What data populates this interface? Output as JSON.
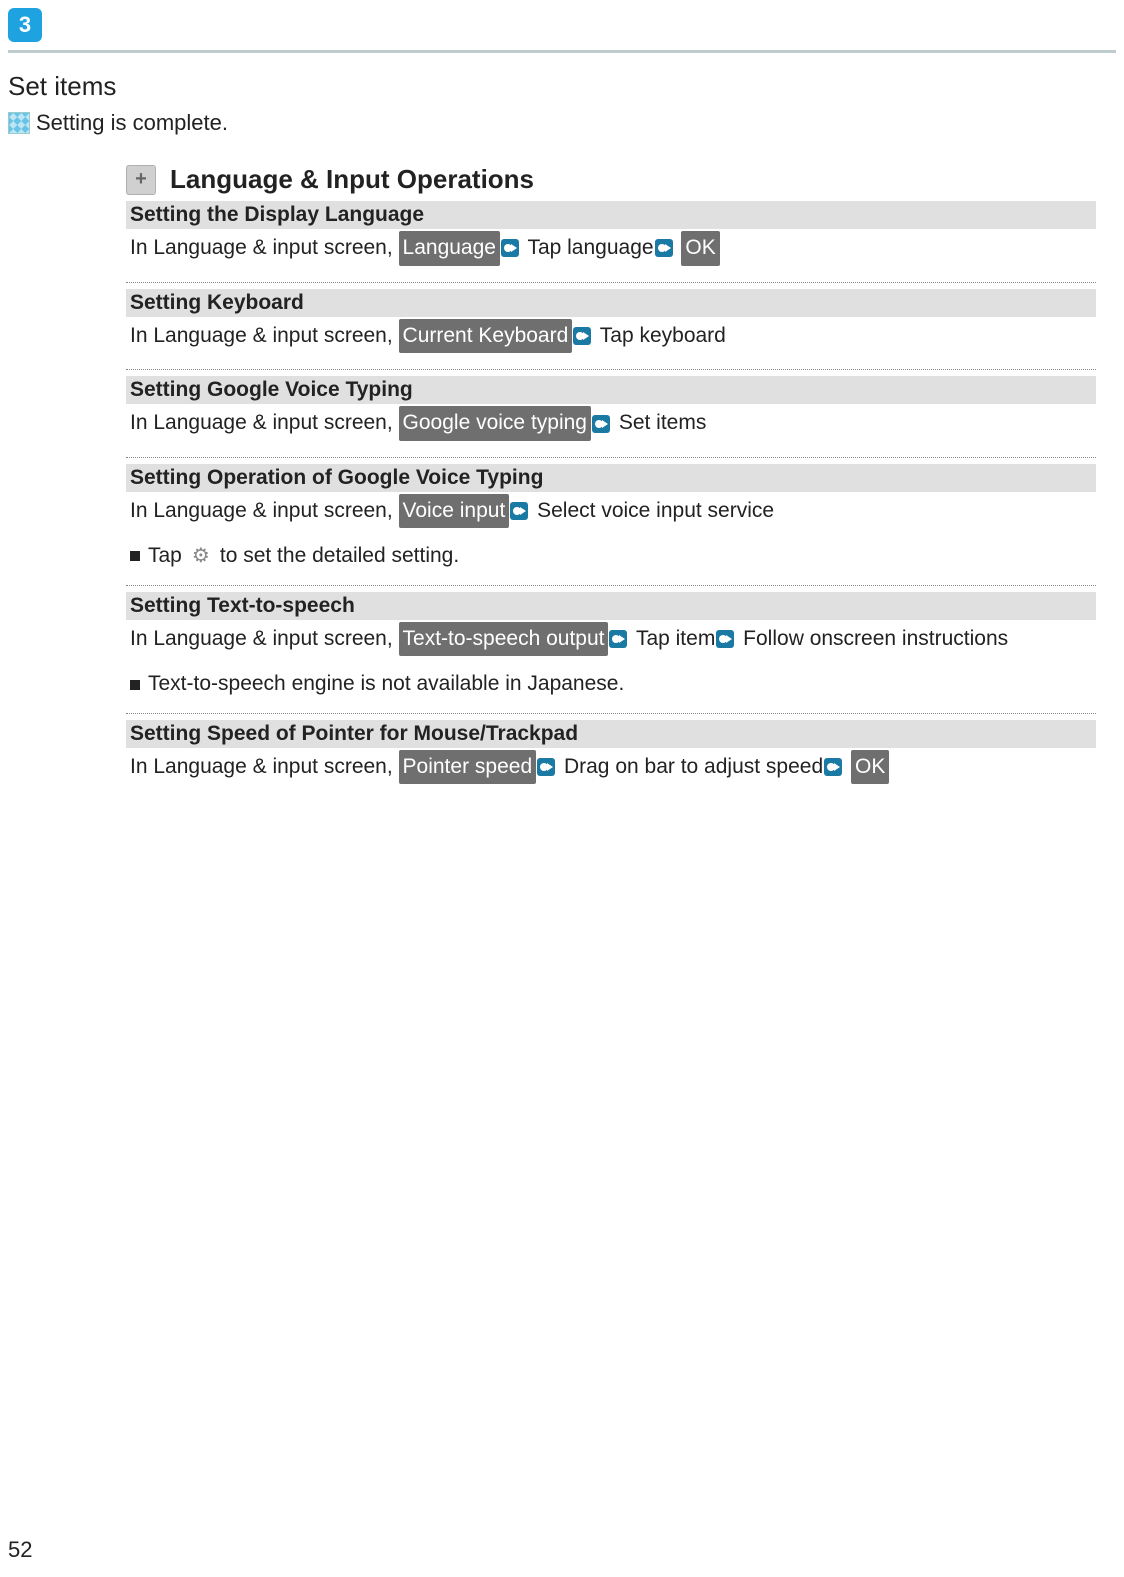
{
  "stepNumber": "3",
  "setItems": "Set items",
  "completeText": "Setting is complete.",
  "sectionTitle": "Language & Input Operations",
  "blocks": [
    {
      "heading": "Setting the Display Language",
      "prefix": "In Language & input screen, ",
      "steps": [
        {
          "chip": "Language",
          "after": "Tap language"
        },
        {
          "chip": null,
          "after": null
        },
        {
          "chip": "OK",
          "after": null,
          "noArrow": true
        }
      ],
      "rendered": true
    }
  ],
  "b1": {
    "heading": "Setting the Display Language",
    "prefix": "In Language & input screen, ",
    "chip1": "Language",
    "text1": "Tap language",
    "chip2": "OK"
  },
  "b2": {
    "heading": "Setting Keyboard",
    "prefix": "In Language & input screen, ",
    "chip1": "Current Keyboard",
    "text1": "Tap keyboard"
  },
  "b3": {
    "heading": "Setting Google Voice Typing",
    "prefix": "In Language & input screen, ",
    "chip1": "Google voice typing",
    "text1": "Set items"
  },
  "b4": {
    "heading": "Setting Operation of Google Voice Typing",
    "prefix": "In Language & input screen, ",
    "chip1": "Voice input",
    "text1": "Select voice input service",
    "noteBefore": "Tap",
    "noteAfter": "to set the detailed setting."
  },
  "b5": {
    "heading": "Setting Text-to-speech",
    "prefix": "In Language & input screen, ",
    "chip1": "Text-to-speech output",
    "text1": "Tap item",
    "text2": "Follow onscreen instructions",
    "note": "Text-to-speech engine is not available in Japanese."
  },
  "b6": {
    "heading": "Setting Speed of Pointer for Mouse/Trackpad",
    "prefix": "In Language & input screen, ",
    "chip1": "Pointer speed",
    "text1": "Drag on bar to adjust speed",
    "chip2": "OK"
  },
  "pageNumber": "52"
}
